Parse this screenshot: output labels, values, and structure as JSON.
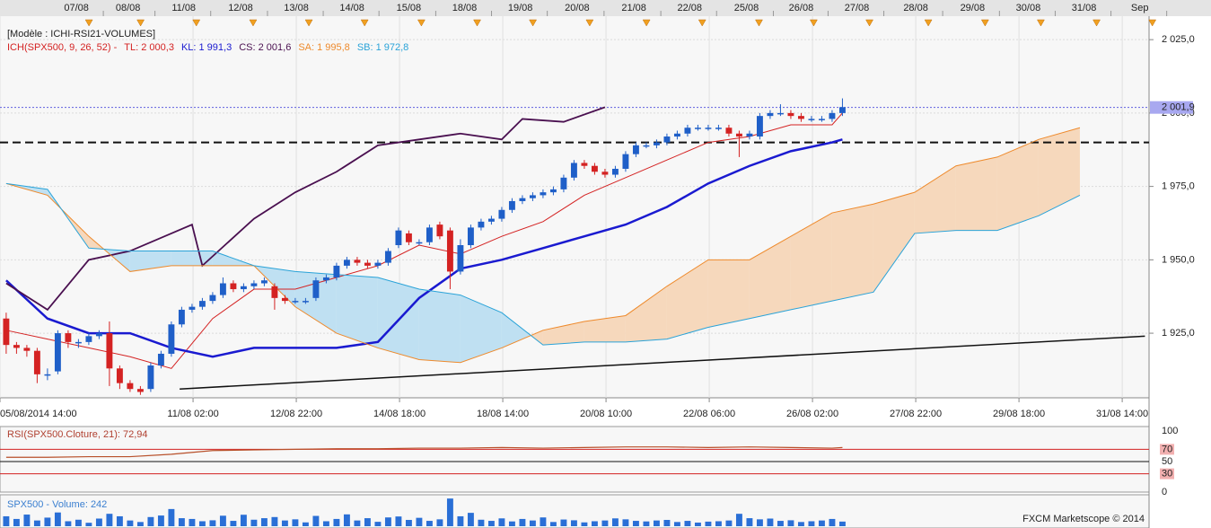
{
  "chart_data": [
    {
      "type": "candlestick",
      "title": "[Modèle : ICHI-RSI21-VOLUMES]",
      "subtitle": "ICH(SPX500, 9, 26, 52) -",
      "colors": {
        "up": "#1f5fc8",
        "down": "#d42222"
      },
      "open": [
        1930,
        1921,
        1920,
        1919,
        1911,
        1912,
        1925,
        1922,
        1922,
        1924,
        1925,
        1913,
        1908,
        1906,
        1906,
        1914,
        1918,
        1928,
        1933,
        1934,
        1936,
        1938,
        1942,
        1940,
        1941,
        1942,
        1941,
        1937,
        1936,
        1936,
        1937,
        1943,
        1944,
        1948,
        1950,
        1949,
        1948,
        1949,
        1955,
        1959,
        1956,
        1956,
        1962,
        1960,
        1946,
        1955,
        1961,
        1963,
        1964,
        1967,
        1970,
        1971,
        1972,
        1973,
        1974,
        1978,
        1983,
        1982,
        1980,
        1979,
        1981,
        1986,
        1989,
        1989,
        1990,
        1992,
        1993,
        1995,
        1995,
        1995,
        1995,
        1993,
        1992,
        1992,
        1999,
        2000,
        2000,
        1999,
        1998,
        1998,
        1998,
        2000
      ],
      "high": [
        1932,
        1922,
        1921,
        1920,
        1913,
        1926,
        1926,
        1923,
        1925,
        1926,
        1929,
        1914,
        1909,
        1907,
        1915,
        1919,
        1929,
        1934,
        1935,
        1937,
        1939,
        1944,
        1943,
        1942,
        1943,
        1944,
        1942,
        1938,
        1937,
        1937,
        1944,
        1945,
        1949,
        1951,
        1951,
        1950,
        1950,
        1954,
        1961,
        1960,
        1957,
        1962,
        1963,
        1961,
        1957,
        1962,
        1964,
        1965,
        1968,
        1971,
        1972,
        1973,
        1974,
        1975,
        1979,
        1984,
        1984,
        1983,
        1981,
        1982,
        1987,
        1990,
        1990,
        1991,
        1993,
        1994,
        1996,
        1996,
        1996,
        1996,
        1996,
        1994,
        1994,
        2000,
        2001,
        2003,
        2001,
        2000,
        1999,
        1999,
        2001,
        2005
      ],
      "low": [
        1918,
        1918,
        1917,
        1908,
        1909,
        1911,
        1920,
        1920,
        1921,
        1923,
        1907,
        1906,
        1905,
        1904,
        1905,
        1913,
        1917,
        1927,
        1932,
        1933,
        1935,
        1937,
        1939,
        1939,
        1940,
        1941,
        1933,
        1935,
        1935,
        1935,
        1936,
        1942,
        1943,
        1947,
        1948,
        1947,
        1947,
        1948,
        1954,
        1955,
        1955,
        1955,
        1957,
        1940,
        1945,
        1954,
        1960,
        1962,
        1963,
        1966,
        1969,
        1970,
        1971,
        1972,
        1973,
        1977,
        1981,
        1979,
        1978,
        1978,
        1980,
        1985,
        1988,
        1988,
        1989,
        1991,
        1992,
        1994,
        1994,
        1994,
        1992,
        1985,
        1991,
        1991,
        1998,
        1999,
        1998,
        1997,
        1997,
        1997,
        1997,
        1999
      ],
      "close": [
        1921,
        1920,
        1919,
        1911,
        1911,
        1925,
        1922,
        1922,
        1924,
        1925,
        1913,
        1908,
        1906,
        1905,
        1914,
        1918,
        1928,
        1933,
        1934,
        1936,
        1938,
        1942,
        1940,
        1941,
        1942,
        1943,
        1937,
        1936,
        1936,
        1936,
        1943,
        1944,
        1948,
        1950,
        1949,
        1948,
        1949,
        1953,
        1960,
        1956,
        1956,
        1961,
        1958,
        1946,
        1955,
        1961,
        1963,
        1964,
        1967,
        1970,
        1971,
        1972,
        1973,
        1974,
        1978,
        1983,
        1982,
        1980,
        1979,
        1981,
        1986,
        1989,
        1989,
        1990,
        1992,
        1993,
        1995,
        1995,
        1995,
        1995,
        1993,
        1992,
        1993,
        1999,
        2000,
        2000,
        1999,
        1998,
        1998,
        1998,
        2000,
        2002
      ],
      "series": [
        {
          "name": "TL: 2 000,3",
          "color": "#d42222",
          "width": 1,
          "x": [
            0,
            4,
            8,
            12,
            16,
            20,
            24,
            28,
            32,
            36,
            40,
            44,
            48,
            52,
            56,
            60,
            64,
            68,
            72,
            76,
            80,
            81
          ],
          "values": [
            1926,
            1923,
            1920,
            1917,
            1913,
            1930,
            1940,
            1940,
            1944,
            1948,
            1955,
            1952,
            1958,
            1963,
            1972,
            1978,
            1984,
            1990,
            1992,
            1996,
            1996,
            2000
          ]
        },
        {
          "name": "KL: 1 991,3",
          "color": "#1a1ad0",
          "width": 2.5,
          "x": [
            0,
            4,
            8,
            12,
            16,
            20,
            24,
            28,
            32,
            36,
            40,
            44,
            48,
            52,
            56,
            60,
            64,
            68,
            72,
            76,
            80,
            81
          ],
          "values": [
            1943,
            1930,
            1925,
            1925,
            1920,
            1917,
            1920,
            1920,
            1920,
            1922,
            1937,
            1947,
            1950,
            1954,
            1958,
            1962,
            1968,
            1976,
            1982,
            1987,
            1990,
            1991
          ]
        },
        {
          "name": "CS: 2 001,6",
          "color": "#4a1050",
          "width": 1.8,
          "x": [
            0,
            4,
            8,
            12,
            16,
            18,
            19,
            24,
            28,
            32,
            36,
            40,
            44,
            48,
            50,
            54,
            58
          ],
          "values": [
            1942,
            1933,
            1950,
            1953,
            1959,
            1962,
            1948,
            1964,
            1973,
            1980,
            1989,
            1991,
            1993,
            1991,
            1998,
            1997,
            2002
          ]
        },
        {
          "name": "SA: 1 995,8",
          "color": "#ee8a2c",
          "width": 1,
          "x": [
            0,
            4,
            8,
            12,
            16,
            20,
            24,
            28,
            32,
            36,
            40,
            44,
            48,
            52,
            56,
            60,
            64,
            68,
            72,
            76,
            80,
            84,
            88,
            92,
            96,
            100,
            104
          ],
          "values": [
            1976,
            1972,
            1958,
            1946,
            1948,
            1948,
            1948,
            1934,
            1925,
            1920,
            1916,
            1915,
            1920,
            1926,
            1929,
            1931,
            1941,
            1950,
            1950,
            1958,
            1966,
            1969,
            1973,
            1982,
            1985,
            1991,
            1995
          ]
        },
        {
          "name": "SB: 1 972,8",
          "color": "#2aa3d8",
          "width": 1,
          "x": [
            0,
            4,
            8,
            12,
            16,
            20,
            24,
            28,
            32,
            36,
            40,
            44,
            48,
            52,
            56,
            60,
            64,
            68,
            72,
            76,
            80,
            84,
            88,
            92,
            96,
            100,
            104
          ],
          "values": [
            1976,
            1974,
            1954,
            1953,
            1953,
            1953,
            1948,
            1946,
            1945,
            1944,
            1940,
            1938,
            1932,
            1921,
            1922,
            1922,
            1923,
            1927,
            1930,
            1933,
            1936,
            1939,
            1959,
            1960,
            1960,
            1965,
            1972
          ]
        }
      ],
      "hline": 1990,
      "trendline": {
        "x": [
          16.8,
          110.3
        ],
        "values": [
          1906,
          1924
        ]
      },
      "last_price": {
        "value": 2001.9,
        "label": "2 001,9"
      },
      "xlim": [
        -0.6,
        110.7
      ],
      "ylim": [
        1903,
        2033
      ],
      "yticks": [
        {
          "value": 1925,
          "label": "1 925,0"
        },
        {
          "value": 1950,
          "label": "1 950,0"
        },
        {
          "value": 1975,
          "label": "1 975,0"
        },
        {
          "value": 2000,
          "label": "2 000,0"
        },
        {
          "value": 2025,
          "label": "2 025,0"
        }
      ],
      "xticks": [
        {
          "value": -0.6,
          "label": "05/08/2014 14:00"
        },
        {
          "value": 18.1,
          "label": "11/08 02:00"
        },
        {
          "value": 28.1,
          "label": "12/08 22:00"
        },
        {
          "value": 38.1,
          "label": "14/08 18:00"
        },
        {
          "value": 48.1,
          "label": "18/08 14:00"
        },
        {
          "value": 58.1,
          "label": "20/08 10:00"
        },
        {
          "value": 68.1,
          "label": "22/08 06:00"
        },
        {
          "value": 78.1,
          "label": "26/08 02:00"
        },
        {
          "value": 88.1,
          "label": "27/08 22:00"
        },
        {
          "value": 98.1,
          "label": "29/08 18:00"
        },
        {
          "value": 108.1,
          "label": "31/08 14:00"
        }
      ],
      "xticks_top": [
        {
          "value": 6.8,
          "label": "07/08"
        },
        {
          "value": 11.8,
          "label": "08/08"
        },
        {
          "value": 17.2,
          "label": "11/08"
        },
        {
          "value": 22.7,
          "label": "12/08"
        },
        {
          "value": 28.1,
          "label": "13/08"
        },
        {
          "value": 33.5,
          "label": "14/08"
        },
        {
          "value": 39.0,
          "label": "15/08"
        },
        {
          "value": 44.4,
          "label": "18/08"
        },
        {
          "value": 49.8,
          "label": "19/08"
        },
        {
          "value": 55.3,
          "label": "20/08"
        },
        {
          "value": 60.8,
          "label": "21/08"
        },
        {
          "value": 66.2,
          "label": "22/08"
        },
        {
          "value": 71.7,
          "label": "25/08"
        },
        {
          "value": 77.0,
          "label": "26/08"
        },
        {
          "value": 82.4,
          "label": "27/08"
        },
        {
          "value": 88.1,
          "label": "28/08"
        },
        {
          "value": 93.6,
          "label": "29/08"
        },
        {
          "value": 99.0,
          "label": "30/08"
        },
        {
          "value": 104.4,
          "label": "31/08"
        },
        {
          "value": 109.8,
          "label": "Sep"
        }
      ]
    },
    {
      "type": "line",
      "title": "RSI(SPX500.Cloture, 21): 72,94",
      "color": "#b8502a",
      "x": [
        0,
        4,
        8,
        12,
        16,
        20,
        24,
        28,
        32,
        36,
        40,
        44,
        48,
        52,
        56,
        60,
        64,
        68,
        72,
        76,
        80,
        81
      ],
      "values": [
        57,
        57,
        58,
        58,
        62,
        68,
        69,
        70,
        71,
        71,
        72,
        72,
        73,
        72,
        73,
        74,
        74,
        73,
        74,
        73,
        72,
        73
      ],
      "ylim": [
        0,
        100
      ],
      "yticks": [
        0,
        30,
        50,
        70,
        100
      ],
      "alert_color": "#d42222"
    },
    {
      "type": "bar",
      "title": "SPX500 - Volume: 242",
      "color": "#2a6fd6",
      "values": [
        520,
        380,
        610,
        300,
        450,
        720,
        260,
        340,
        180,
        400,
        650,
        520,
        300,
        220,
        480,
        560,
        900,
        420,
        380,
        260,
        310,
        550,
        280,
        600,
        340,
        420,
        480,
        300,
        360,
        200,
        540,
        260,
        380,
        620,
        300,
        420,
        230,
        460,
        510,
        330,
        440,
        280,
        360,
        1450,
        520,
        700,
        340,
        280,
        410,
        250,
        380,
        300,
        460,
        220,
        350,
        310,
        200,
        260,
        300,
        410,
        360,
        280,
        250,
        300,
        330,
        220,
        280,
        190,
        240,
        260,
        300,
        650,
        420,
        360,
        400,
        280,
        310,
        220,
        260,
        300,
        380,
        242
      ],
      "ylim": [
        0,
        1600
      ]
    }
  ],
  "footer": "FXCM Marketscope © 2014"
}
